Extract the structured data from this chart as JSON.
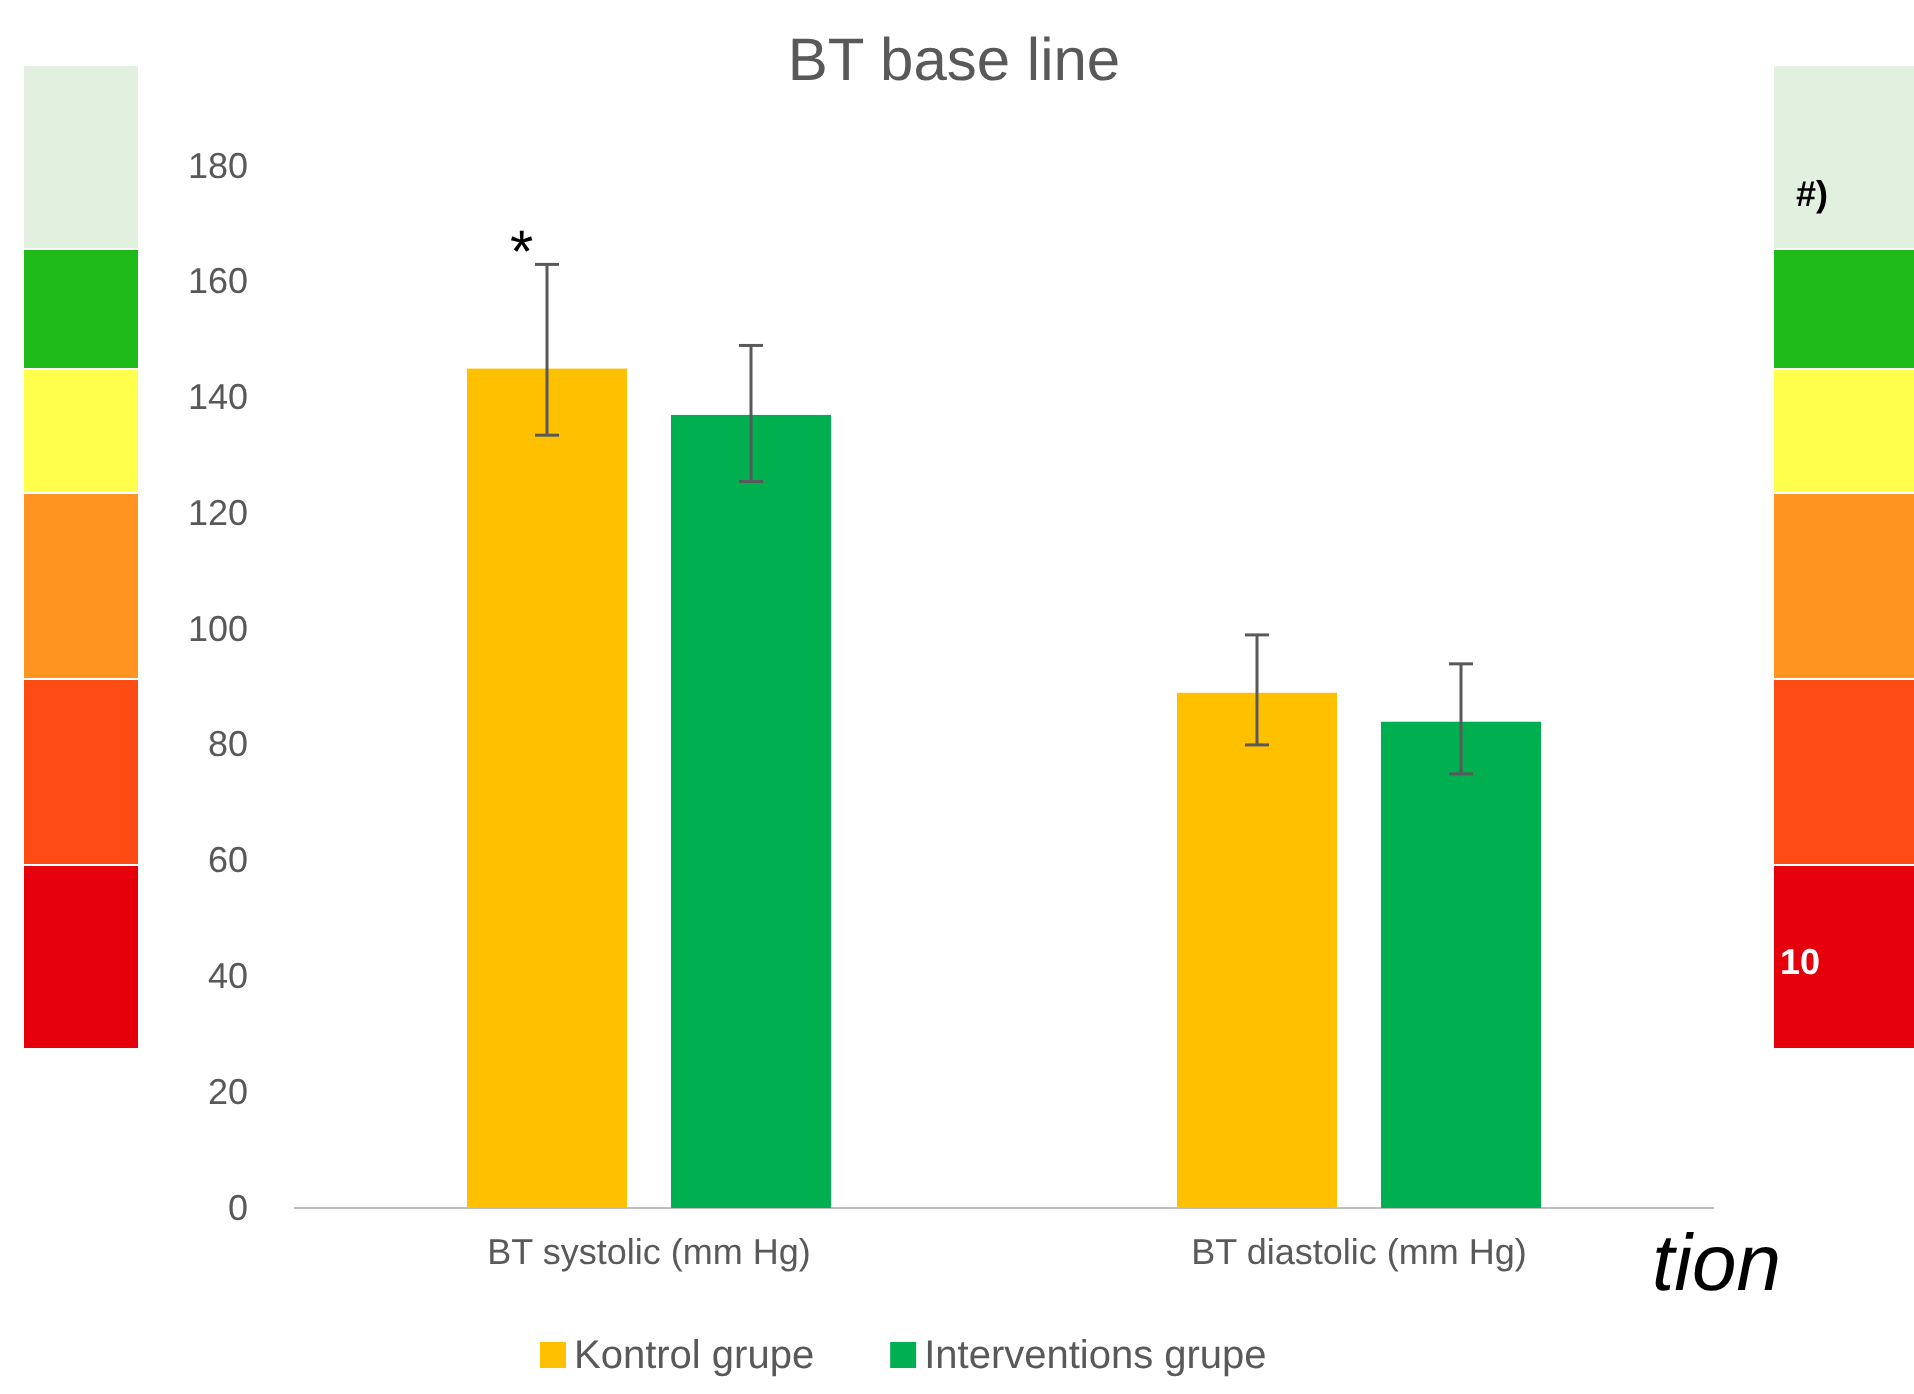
{
  "chart_data": {
    "type": "bar",
    "title": "BT base line",
    "categories": [
      "BT systolic (mm Hg)",
      "BT diastolic (mm Hg)"
    ],
    "series": [
      {
        "name": "Kontrol grupe",
        "color": "#ffc000",
        "values": [
          145,
          89
        ],
        "errors": [
          [
            133.5,
            163
          ],
          [
            80,
            99
          ]
        ]
      },
      {
        "name": "Interventions grupe",
        "color": "#00b050",
        "values": [
          137,
          84
        ],
        "errors": [
          [
            125.5,
            149
          ],
          [
            75,
            94
          ]
        ]
      }
    ],
    "ylim": [
      0,
      180
    ],
    "yticks": [
      0,
      20,
      40,
      60,
      80,
      100,
      120,
      140,
      160,
      180
    ],
    "grid": false,
    "legend": "bottom",
    "annotations": [
      "*",
      "#)",
      "10",
      "tion"
    ]
  }
}
